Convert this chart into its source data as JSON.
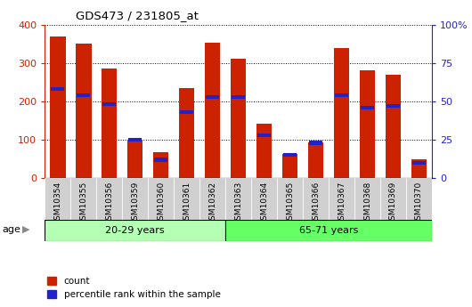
{
  "title": "GDS473 / 231805_at",
  "samples": [
    "GSM10354",
    "GSM10355",
    "GSM10356",
    "GSM10359",
    "GSM10360",
    "GSM10361",
    "GSM10362",
    "GSM10363",
    "GSM10364",
    "GSM10365",
    "GSM10366",
    "GSM10367",
    "GSM10368",
    "GSM10369",
    "GSM10370"
  ],
  "count_values": [
    368,
    350,
    285,
    100,
    68,
    235,
    352,
    310,
    142,
    62,
    92,
    338,
    280,
    270,
    50
  ],
  "percentile_values": [
    58,
    54,
    48,
    25,
    12,
    43,
    53,
    53,
    28,
    15,
    23,
    54,
    46,
    47,
    10
  ],
  "groups": [
    {
      "label": "20-29 years",
      "start": 0,
      "end": 7,
      "color": "#b3ffb3"
    },
    {
      "label": "65-71 years",
      "start": 7,
      "end": 15,
      "color": "#66ff66"
    }
  ],
  "bar_color": "#cc2200",
  "blue_color": "#2222cc",
  "left_ylim": [
    0,
    400
  ],
  "right_ylim": [
    0,
    100
  ],
  "left_yticks": [
    0,
    100,
    200,
    300,
    400
  ],
  "right_yticks": [
    0,
    25,
    50,
    75,
    100
  ],
  "right_yticklabels": [
    "0",
    "25",
    "50",
    "75",
    "100%"
  ],
  "grid_color": "black",
  "bg_color": "#ffffff",
  "age_label": "age",
  "legend_count": "count",
  "legend_percentile": "percentile rank within the sample",
  "axis_color_left": "#cc2200",
  "axis_color_right": "#2222cc",
  "tick_bg_color": "#d0d0d0"
}
